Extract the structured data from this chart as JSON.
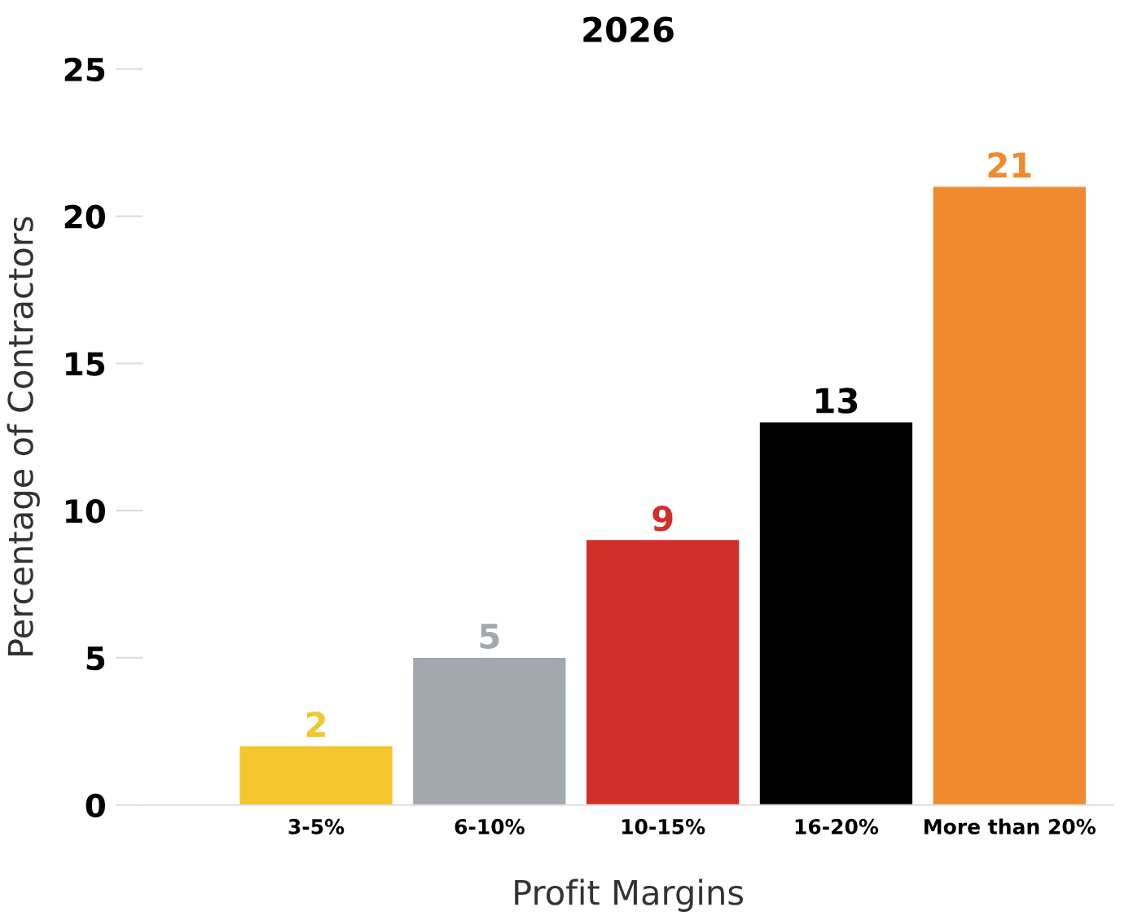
{
  "chart_data": {
    "type": "bar",
    "title": "2026",
    "xlabel": "Profit Margins",
    "ylabel": "Percentage of Contractors",
    "categories": [
      "3-5%",
      "6-10%",
      "10-15%",
      "16-20%",
      "More than 20%"
    ],
    "values": [
      2,
      5,
      9,
      13,
      21
    ],
    "colors": [
      "#f4c52c",
      "#a3a7ae",
      "#d1302a",
      "#000000",
      "#ef8a2e"
    ],
    "ylim": [
      0,
      25
    ],
    "yticks": [
      0,
      5,
      10,
      15,
      20,
      25
    ],
    "grid": false,
    "data_labels": true
  }
}
